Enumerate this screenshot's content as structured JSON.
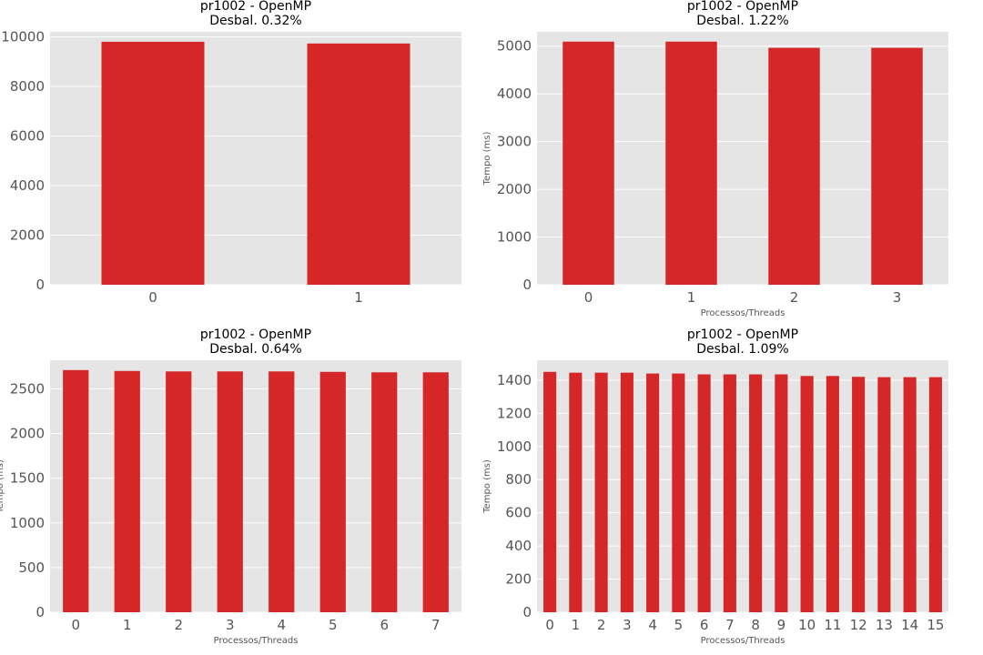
{
  "chart_data": [
    {
      "type": "bar",
      "title": "pr1002 - OpenMP",
      "subtitle": "Desbal. 0.32%",
      "xlabel": "",
      "ylabel": "",
      "categories": [
        "0",
        "1"
      ],
      "values": [
        9800,
        9730
      ],
      "ylim": [
        0,
        10200
      ],
      "yticks": [
        0,
        2000,
        4000,
        6000,
        8000,
        10000
      ],
      "grid": true,
      "color": "#d62728"
    },
    {
      "type": "bar",
      "title": "pr1002 - OpenMP",
      "subtitle": "Desbal. 1.22%",
      "xlabel": "Processos/Threads",
      "ylabel": "Tempo (ms)",
      "categories": [
        "0",
        "1",
        "2",
        "3"
      ],
      "values": [
        5095,
        5095,
        4965,
        4965
      ],
      "ylim": [
        0,
        5300
      ],
      "yticks": [
        0,
        1000,
        2000,
        3000,
        4000,
        5000
      ],
      "grid": true,
      "color": "#d62728"
    },
    {
      "type": "bar",
      "title": "pr1002 - OpenMP",
      "subtitle": "Desbal. 0.64%",
      "xlabel": "Processos/Threads",
      "ylabel": "Tempo (ms)",
      "categories": [
        "0",
        "1",
        "2",
        "3",
        "4",
        "5",
        "6",
        "7"
      ],
      "values": [
        2710,
        2700,
        2695,
        2695,
        2695,
        2690,
        2685,
        2685
      ],
      "ylim": [
        0,
        2820
      ],
      "yticks": [
        0,
        500,
        1000,
        1500,
        2000,
        2500
      ],
      "grid": true,
      "color": "#d62728"
    },
    {
      "type": "bar",
      "title": "pr1002 - OpenMP",
      "subtitle": "Desbal. 1.09%",
      "xlabel": "Processos/Threads",
      "ylabel": "Tempo (ms)",
      "categories": [
        "0",
        "1",
        "2",
        "3",
        "4",
        "5",
        "6",
        "7",
        "8",
        "9",
        "10",
        "11",
        "12",
        "13",
        "14",
        "15"
      ],
      "values": [
        1450,
        1445,
        1445,
        1445,
        1440,
        1440,
        1435,
        1435,
        1435,
        1435,
        1425,
        1425,
        1420,
        1418,
        1418,
        1418
      ],
      "ylim": [
        0,
        1520
      ],
      "yticks": [
        0,
        200,
        400,
        600,
        800,
        1000,
        1200,
        1400
      ],
      "grid": true,
      "color": "#d62728"
    }
  ]
}
